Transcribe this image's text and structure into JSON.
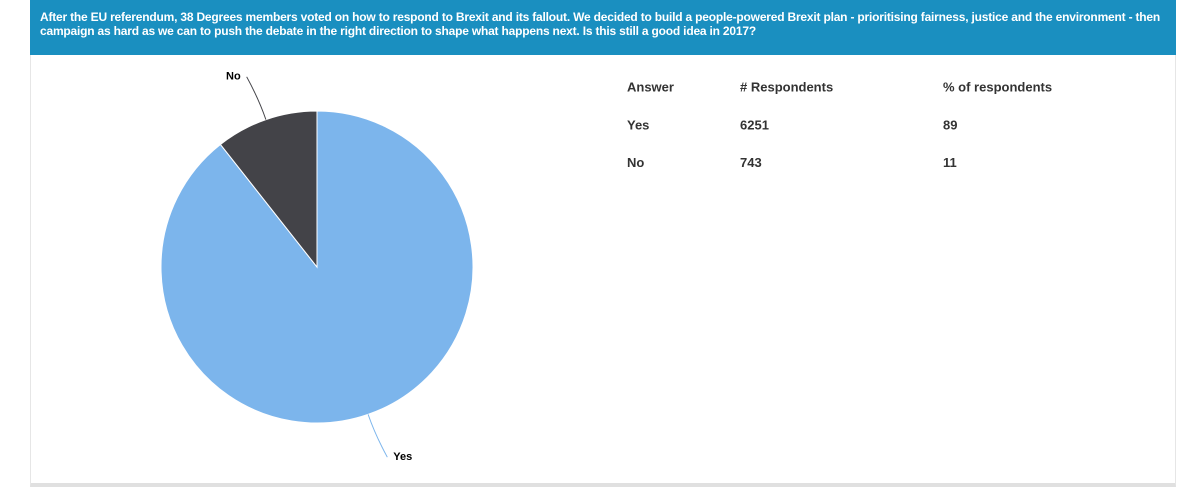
{
  "chart_data": {
    "type": "pie",
    "title": "After the EU referendum, 38 Degrees members voted on how to respond to Brexit and its fallout. We decided to build a people-powered Brexit plan - prioritising fairness, justice and the environment - then campaign as hard as we can to push the debate in the right direction to shape what happens next. Is this still a good idea in 2017?",
    "categories": [
      "Yes",
      "No"
    ],
    "values": [
      6251,
      743
    ],
    "colors": [
      "#7cb5ec",
      "#434348"
    ]
  },
  "table": {
    "header": [
      "Answer",
      "# Respondents",
      "% of respondents"
    ],
    "rows": [
      [
        "Yes",
        6251,
        89
      ],
      [
        "No",
        743,
        11
      ]
    ]
  }
}
